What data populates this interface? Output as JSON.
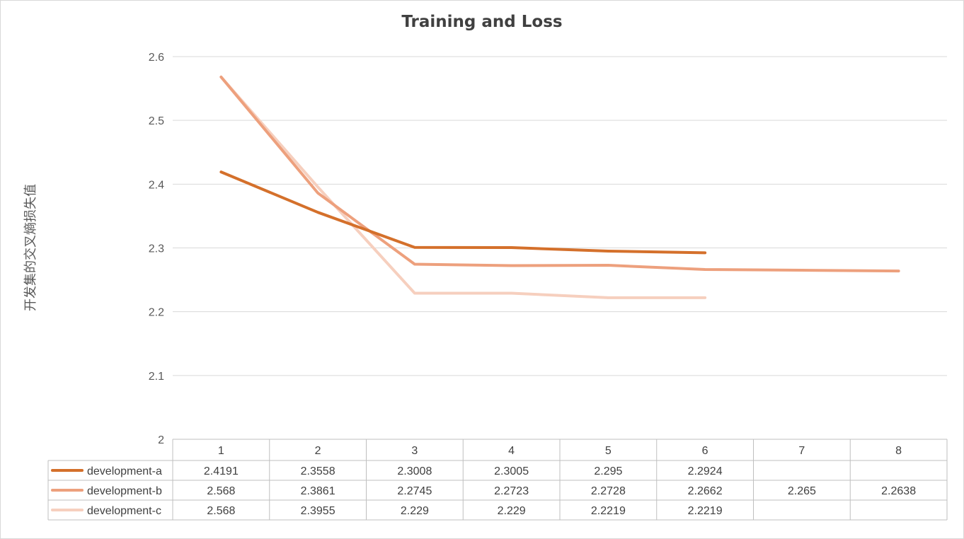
{
  "colors": {
    "development-a": "#d4702b",
    "development-b": "#eda07d",
    "development-c": "#f6cfbe",
    "grid": "#d9d9d9",
    "table_border": "#bfbfbf"
  },
  "chart_data": {
    "type": "line",
    "title": "Training and Loss",
    "ylabel": "开发集的交叉熵损失值",
    "xlabel": "",
    "categories": [
      "1",
      "2",
      "3",
      "4",
      "5",
      "6",
      "7",
      "8"
    ],
    "ylim": [
      2,
      2.6
    ],
    "yticks": [
      "2",
      "2.1",
      "2.2",
      "2.3",
      "2.4",
      "2.5",
      "2.6"
    ],
    "grid": true,
    "legend": "data-table",
    "series": [
      {
        "name": "development-a",
        "values": [
          2.4191,
          2.3558,
          2.3008,
          2.3005,
          2.295,
          2.2924,
          null,
          null
        ],
        "labels": [
          "2.4191",
          "2.3558",
          "2.3008",
          "2.3005",
          "2.295",
          "2.2924",
          "",
          ""
        ]
      },
      {
        "name": "development-b",
        "values": [
          2.568,
          2.3861,
          2.2745,
          2.2723,
          2.2728,
          2.2662,
          2.265,
          2.2638
        ],
        "labels": [
          "2.568",
          "2.3861",
          "2.2745",
          "2.2723",
          "2.2728",
          "2.2662",
          "2.265",
          "2.2638"
        ]
      },
      {
        "name": "development-c",
        "values": [
          2.568,
          2.3955,
          2.229,
          2.229,
          2.2219,
          2.2219,
          null,
          null
        ],
        "labels": [
          "2.568",
          "2.3955",
          "2.229",
          "2.229",
          "2.2219",
          "2.2219",
          "",
          ""
        ]
      }
    ]
  }
}
